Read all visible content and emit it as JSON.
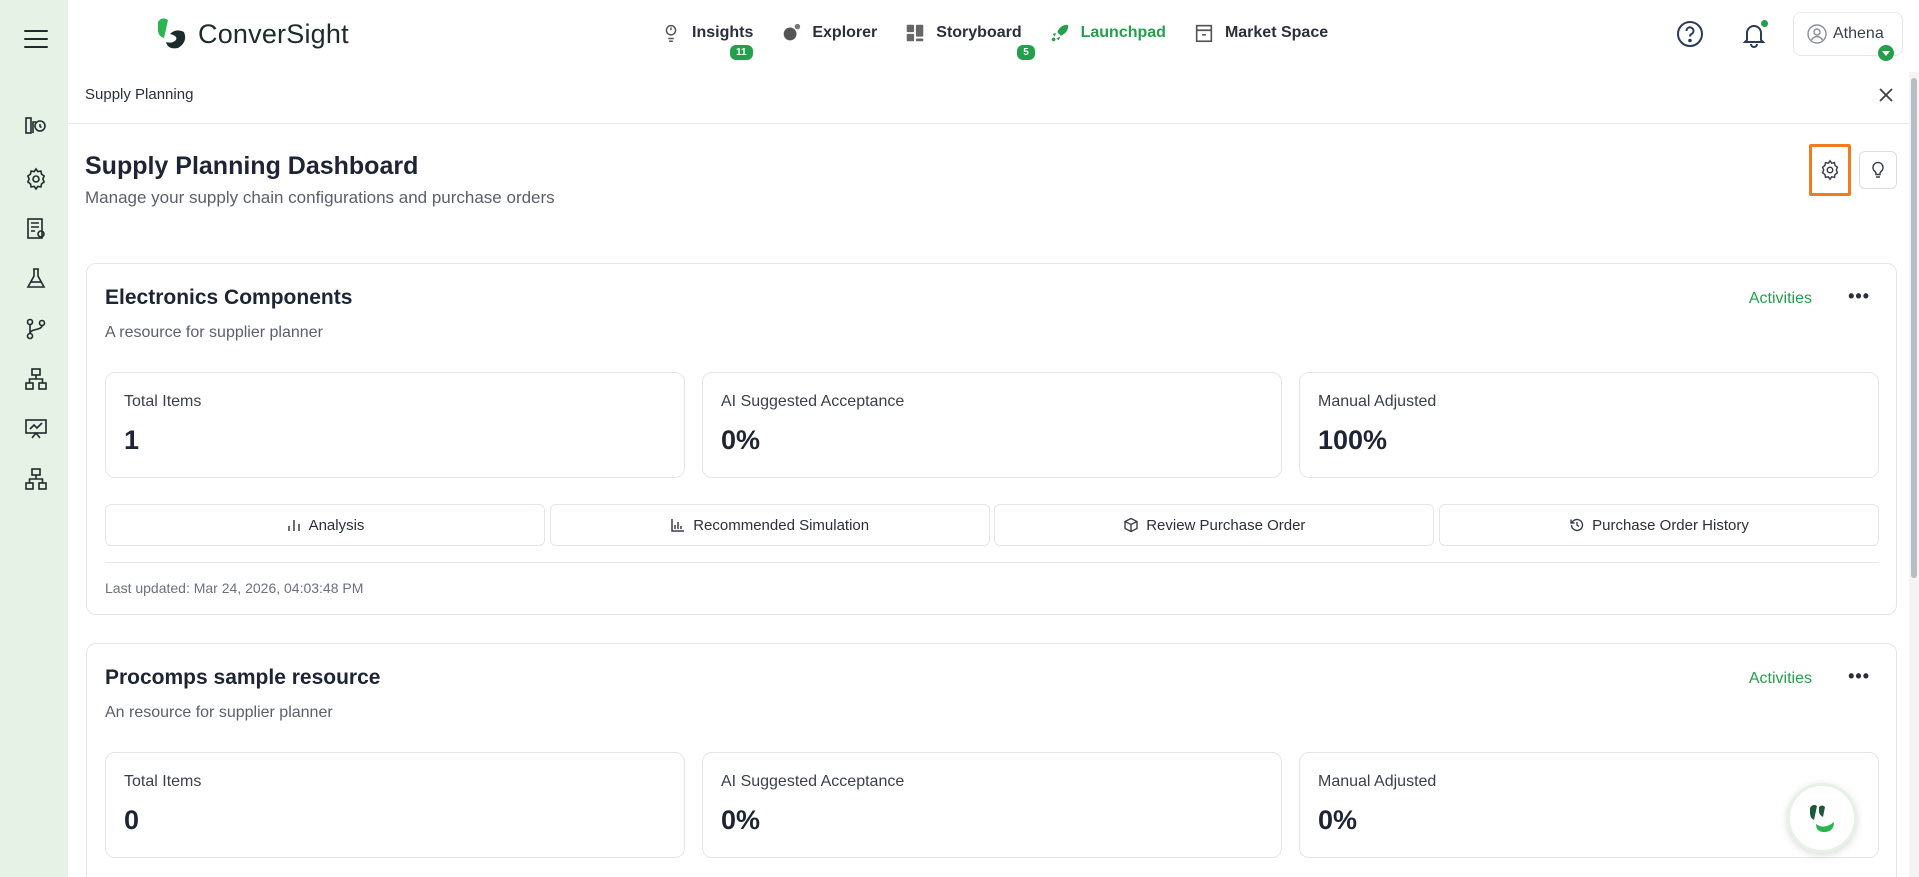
{
  "app": {
    "brand": "ConverSight",
    "accent_color": "#22a04b",
    "highlight_color": "#f27b1f"
  },
  "nav": [
    {
      "label": "Insights",
      "icon": "insights-icon",
      "badge": "11",
      "active": false
    },
    {
      "label": "Explorer",
      "icon": "explorer-icon",
      "badge": "",
      "active": false
    },
    {
      "label": "Storyboard",
      "icon": "storyboard-icon",
      "badge": "5",
      "active": false
    },
    {
      "label": "Launchpad",
      "icon": "rocket-icon",
      "badge": "",
      "active": true
    },
    {
      "label": "Market Space",
      "icon": "market-space-icon",
      "badge": "",
      "active": false
    }
  ],
  "user": {
    "name": "Athena"
  },
  "sidebar": {
    "icons": [
      "datasets-icon",
      "settings-icon",
      "reports-icon",
      "lab-icon",
      "workflow-icon",
      "hierarchy-icon",
      "presentation-icon",
      "org-chart-icon"
    ]
  },
  "breadcrumb": {
    "label": "Supply Planning"
  },
  "header": {
    "title": "Supply Planning Dashboard",
    "subtitle": "Manage your supply chain configurations and purchase orders"
  },
  "cards": [
    {
      "title": "Electronics Components",
      "subtitle": "A resource for supplier planner",
      "activities": "Activities",
      "stats": [
        {
          "label": "Total Items",
          "value": "1"
        },
        {
          "label": "AI Suggested Acceptance",
          "value": "0%"
        },
        {
          "label": "Manual Adjusted",
          "value": "100%"
        }
      ],
      "actions": [
        "Analysis",
        "Recommended Simulation",
        "Review Purchase Order",
        "Purchase Order History"
      ],
      "updated": "Last updated: Mar 24, 2026, 04:03:48 PM"
    },
    {
      "title": "Procomps sample resource",
      "subtitle": "An resource for supplier planner",
      "activities": "Activities",
      "stats": [
        {
          "label": "Total Items",
          "value": "0"
        },
        {
          "label": "AI Suggested Acceptance",
          "value": "0%"
        },
        {
          "label": "Manual Adjusted",
          "value": "0%"
        }
      ]
    }
  ]
}
